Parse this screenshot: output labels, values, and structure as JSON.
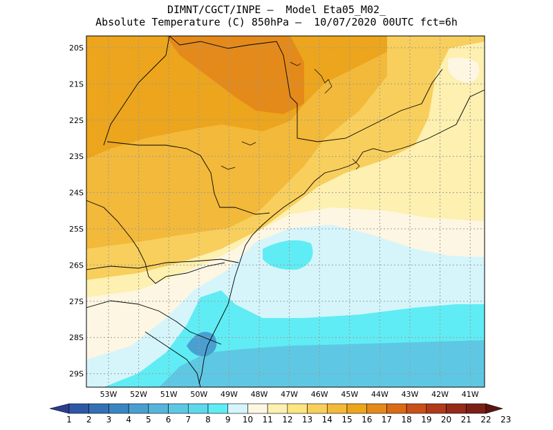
{
  "title": {
    "line1": "DIMNT/CGCT/INPE —  Model Eta05_M02_",
    "line2": "Absolute Temperature (C) 850hPa —  10/07/2020 00UTC fct=6h"
  },
  "axes": {
    "lat_labels": [
      "20S",
      "21S",
      "22S",
      "23S",
      "24S",
      "25S",
      "26S",
      "27S",
      "28S",
      "29S"
    ],
    "lon_labels": [
      "53W",
      "52W",
      "51W",
      "50W",
      "49W",
      "48W",
      "47W",
      "46W",
      "45W",
      "44W",
      "43W",
      "42W",
      "41W"
    ]
  },
  "colorbar": {
    "labels": [
      "1",
      "2",
      "3",
      "4",
      "5",
      "6",
      "7",
      "8",
      "9",
      "10",
      "11",
      "12",
      "13",
      "14",
      "15",
      "16",
      "17",
      "18",
      "19",
      "20",
      "21",
      "22",
      "23"
    ],
    "colors": [
      "#2a3d8f",
      "#2e58a6",
      "#3470b5",
      "#3a86c3",
      "#4a9fd1",
      "#57b5dc",
      "#5ec8e4",
      "#5dd9eb",
      "#60ecf4",
      "#d5f5fb",
      "#fdf6e3",
      "#fdf0b0",
      "#fde581",
      "#f8cf5c",
      "#f2b93a",
      "#eca51c",
      "#e48a1a",
      "#d96a16",
      "#c8501a",
      "#b03a1a",
      "#952a18",
      "#7a1f14",
      "#5c1410"
    ]
  },
  "map_colors": {
    "ocean_cold": "#5ec8e4",
    "ocean_cyan": "#60ecf4",
    "ocean_pale": "#d5f5fb",
    "land_warm": "#eca51c",
    "land_orange": "#e48a1a",
    "land_mid": "#f2b93a",
    "land_light": "#f8cf5c",
    "coast_yellow": "#fdf0b0",
    "border": "#000000"
  }
}
